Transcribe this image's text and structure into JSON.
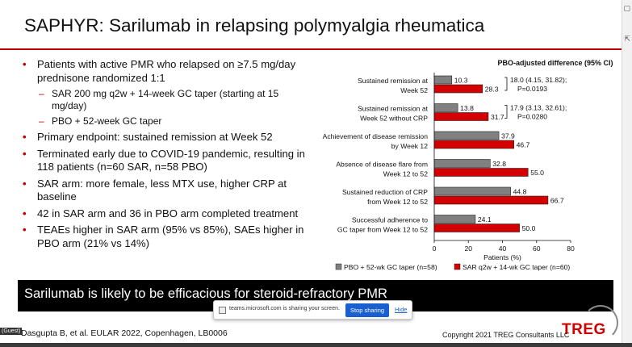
{
  "slide": {
    "title": "SAPHYR: Sarilumab in relapsing polymyalgia rheumatica",
    "accent_color": "#c00000",
    "bullets": [
      {
        "text": "Patients with active PMR who relapsed on ≥7.5 mg/day prednisone randomized 1:1",
        "sub": [
          "SAR 200 mg q2w + 14-week GC taper (starting at 15 mg/day)",
          "PBO + 52-week GC taper"
        ]
      },
      {
        "text": "Primary endpoint: sustained remission at Week 52",
        "sub": []
      },
      {
        "text": "Terminated early due to COVID-19 pandemic, resulting in 118 patients (n=60 SAR, n=58 PBO)",
        "sub": []
      },
      {
        "text": "SAR arm: more female, less MTX use, higher CRP at baseline",
        "sub": []
      },
      {
        "text": "42 in SAR arm and 36 in PBO arm completed treatment",
        "sub": []
      },
      {
        "text": "TEAEs higher in SAR arm (95% vs 85%), SAEs higher in PBO arm (21% vs 14%)",
        "sub": []
      }
    ],
    "banner": "Sarilumab is likely to be efficacious for steroid-refractory PMR",
    "citation": "Dasgupta B, et al. EULAR 2022, Copenhagen, LB0006",
    "copyright": "Copyright 2021 TREG Consultants LLC",
    "logo_text": "TREG"
  },
  "share_bar": {
    "message": "teams.microsoft.com is sharing your screen.",
    "stop_label": "Stop sharing",
    "hide_label": "Hide"
  },
  "guest_label": "(Guest)",
  "chart_data": {
    "type": "bar",
    "orientation": "horizontal",
    "title": "PBO-adjusted difference (95% CI)",
    "xlabel": "Patients (%)",
    "xlim": [
      0,
      80
    ],
    "xticks": [
      0,
      20,
      40,
      60,
      80
    ],
    "categories": [
      [
        "Sustained remission at",
        "Week 52"
      ],
      [
        "Sustained remission at",
        "Week 52 without CRP"
      ],
      [
        "Achievement of disease remission",
        "by Week 12"
      ],
      [
        "Absence of disease flare from",
        "Week 12 to 52"
      ],
      [
        "Sustained reduction of CRP",
        "from Week 12 to 52"
      ],
      [
        "Successful adherence to",
        "GC taper from Week 12 to 52"
      ]
    ],
    "series": [
      {
        "name": "PBO + 52-wk GC taper (n=58)",
        "color": "#808080",
        "values": [
          10.3,
          13.8,
          37.9,
          32.8,
          44.8,
          24.1
        ]
      },
      {
        "name": "SAR q2w + 14-wk GC taper (n=60)",
        "color": "#d40000",
        "values": [
          28.3,
          31.7,
          46.7,
          55.0,
          66.7,
          50.0
        ]
      }
    ],
    "value_labels": [
      [
        "10.3",
        "28.3"
      ],
      [
        "13.8",
        "31.7"
      ],
      [
        "37.9",
        "46.7"
      ],
      [
        "32.8",
        "55.0"
      ],
      [
        "44.8",
        "66.7"
      ],
      [
        "24.1",
        "50.0"
      ]
    ],
    "annotations": [
      {
        "row": 0,
        "lines": [
          "18.0 (4.15, 31.82);",
          "P=0.0193"
        ]
      },
      {
        "row": 1,
        "lines": [
          "17.9 (3.13, 32.61);",
          "P=0.0280"
        ]
      }
    ],
    "legend_position": "bottom",
    "grid": false
  }
}
